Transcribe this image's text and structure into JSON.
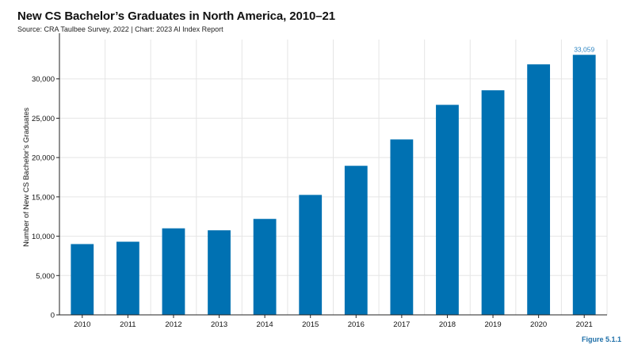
{
  "header": {
    "title": "New CS Bachelor’s Graduates in North America, 2010–21",
    "subtitle": "Source: CRA Taulbee Survey, 2022 | Chart: 2023 AI Index Report"
  },
  "figure_label": "Figure 5.1.1",
  "colors": {
    "bar": "#0071b2",
    "grid": "#e5e5e5",
    "axis": "#222222",
    "data_label": "#2f86c3"
  },
  "chart_data": {
    "type": "bar",
    "title": "New CS Bachelor’s Graduates in North America, 2010–21",
    "xlabel": "",
    "ylabel": "Number of New CS Bachelor’s Graduates",
    "categories": [
      "2010",
      "2011",
      "2012",
      "2013",
      "2014",
      "2015",
      "2016",
      "2017",
      "2018",
      "2019",
      "2020",
      "2021"
    ],
    "values": [
      9000,
      9300,
      11000,
      10750,
      12200,
      15250,
      18950,
      22300,
      26700,
      28550,
      31850,
      33059
    ],
    "ylim": [
      0,
      35000
    ],
    "yticks": [
      0,
      5000,
      10000,
      15000,
      20000,
      25000,
      30000
    ],
    "ytick_labels": [
      "0",
      "5,000",
      "10,000",
      "15,000",
      "20,000",
      "25,000",
      "30,000"
    ],
    "data_labels": [
      {
        "index": 11,
        "text": "33,059"
      }
    ],
    "grid": true
  }
}
